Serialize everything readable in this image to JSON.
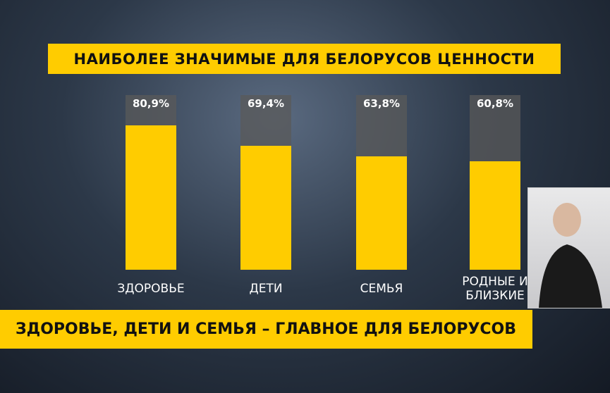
{
  "chart_data": {
    "type": "bar",
    "title": "НАИБОЛЕЕ ЗНАЧИМЫЕ ДЛЯ БЕЛОРУСОВ ЦЕННОСТИ",
    "categories": [
      "ЗДОРОВЬЕ",
      "ДЕТИ",
      "СЕМЬЯ",
      "РОДНЫЕ И БЛИЗКИЕ"
    ],
    "values": [
      80.9,
      69.4,
      63.8,
      60.8
    ],
    "value_labels": [
      "80,9%",
      "69,4%",
      "63,8%",
      "60,8%"
    ],
    "color": "#ffcc00",
    "ylim": [
      0,
      100
    ]
  },
  "ticker": {
    "text": "ЗДОРОВЬЕ, ДЕТИ И СЕМЬЯ – ГЛАВНОЕ ДЛЯ БЕЛОРУСОВ"
  }
}
